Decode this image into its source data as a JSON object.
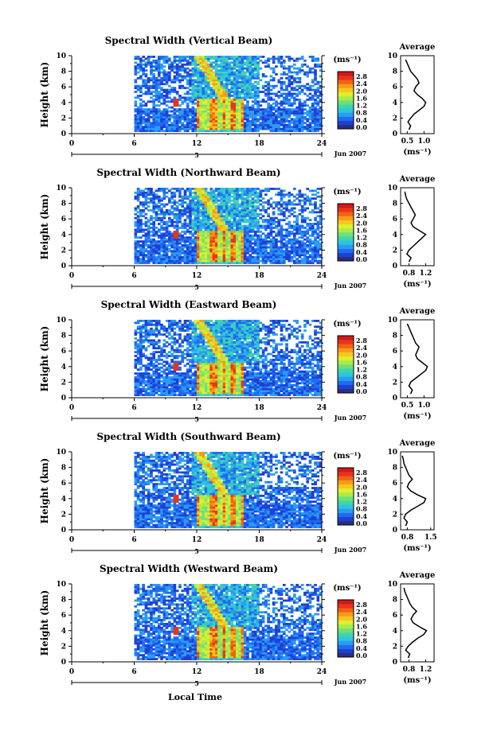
{
  "figure": {
    "date_label": "Jun 2007",
    "bottom_xlabel": "Local Time"
  },
  "colorbar": {
    "unit_label": "(ms⁻¹)",
    "ticks": [
      "2.8",
      "2.4",
      "2.0",
      "1.6",
      "1.2",
      "0.8",
      "0.4",
      "0.0"
    ],
    "colors": [
      "#2b2f7a",
      "#1f3fd6",
      "#1f6cf0",
      "#2a9cf2",
      "#2ec4e0",
      "#3fd6a8",
      "#6ee07a",
      "#a8ec4a",
      "#dfee2e",
      "#f5c81e",
      "#f59a18",
      "#ef6414",
      "#e8341a",
      "#d01818"
    ]
  },
  "chart_data": [
    {
      "type": "heatmap",
      "title": "Spectral Width (Vertical Beam)",
      "ylabel": "Height (km)",
      "xlim": [
        0,
        24
      ],
      "ylim": [
        0,
        10
      ],
      "x_ticks": [
        "0",
        "6",
        "12",
        "18",
        "24"
      ],
      "y_ticks": [
        "0",
        "2",
        "4",
        "6",
        "8",
        "10"
      ],
      "day_label": "5",
      "colorbar_unit": "(ms⁻¹)",
      "average": {
        "title": "Average",
        "xlabel": "(ms⁻¹)",
        "x_ticks": [
          "0.5",
          "1.0"
        ],
        "xlim": [
          0.3,
          1.3
        ],
        "heights": [
          0.5,
          1,
          1.5,
          2,
          2.5,
          3,
          3.5,
          4,
          4.5,
          5,
          5.5,
          6,
          6.5,
          7,
          7.5,
          8,
          8.5,
          9,
          9.5
        ],
        "values": [
          0.55,
          0.6,
          0.52,
          0.6,
          0.7,
          0.85,
          1.0,
          1.05,
          0.95,
          0.8,
          0.7,
          0.75,
          0.85,
          0.8,
          0.7,
          0.6,
          0.55,
          0.5,
          0.45
        ]
      }
    },
    {
      "type": "heatmap",
      "title": "Spectral Width (Northward Beam)",
      "ylabel": "Height (km)",
      "xlim": [
        0,
        24
      ],
      "ylim": [
        0,
        10
      ],
      "x_ticks": [
        "0",
        "6",
        "12",
        "18",
        "24"
      ],
      "y_ticks": [
        "0",
        "2",
        "4",
        "6",
        "8",
        "10"
      ],
      "day_label": "5",
      "colorbar_unit": "(ms⁻¹)",
      "average": {
        "title": "Average",
        "xlabel": "(ms⁻¹)",
        "x_ticks": [
          "0.8",
          "1.2"
        ],
        "xlim": [
          0.6,
          1.4
        ],
        "heights": [
          0.5,
          1,
          1.5,
          2,
          2.5,
          3,
          3.5,
          4,
          4.5,
          5,
          5.5,
          6,
          6.5,
          7,
          7.5,
          8,
          8.5,
          9,
          9.5
        ],
        "values": [
          0.8,
          0.85,
          0.75,
          0.8,
          0.9,
          1.0,
          1.1,
          1.2,
          1.05,
          0.9,
          0.85,
          0.9,
          0.95,
          0.9,
          0.85,
          0.8,
          0.75,
          0.72,
          0.7
        ]
      }
    },
    {
      "type": "heatmap",
      "title": "Spectral Width (Eastward Beam)",
      "ylabel": "Height (km)",
      "xlim": [
        0,
        24
      ],
      "ylim": [
        0,
        10
      ],
      "x_ticks": [
        "0",
        "6",
        "12",
        "18",
        "24"
      ],
      "y_ticks": [
        "0",
        "2",
        "4",
        "6",
        "8",
        "10"
      ],
      "day_label": "5",
      "colorbar_unit": "(ms⁻¹)",
      "average": {
        "title": "Average",
        "xlabel": "(ms⁻¹)",
        "x_ticks": [
          "0.5",
          "1.0"
        ],
        "xlim": [
          0.3,
          1.3
        ],
        "heights": [
          0.5,
          1,
          1.5,
          2,
          2.5,
          3,
          3.5,
          4,
          4.5,
          5,
          5.5,
          6,
          6.5,
          7,
          7.5,
          8,
          8.5,
          9,
          9.5
        ],
        "values": [
          0.6,
          0.65,
          0.55,
          0.6,
          0.75,
          0.9,
          1.05,
          1.1,
          0.95,
          0.8,
          0.75,
          0.8,
          0.85,
          0.75,
          0.7,
          0.65,
          0.6,
          0.55,
          0.5
        ]
      }
    },
    {
      "type": "heatmap",
      "title": "Spectral Width (Southward Beam)",
      "ylabel": "Height (km)",
      "xlim": [
        0,
        24
      ],
      "ylim": [
        0,
        10
      ],
      "x_ticks": [
        "0",
        "6",
        "12",
        "18",
        "24"
      ],
      "y_ticks": [
        "0",
        "2",
        "4",
        "6",
        "8",
        "10"
      ],
      "day_label": "5",
      "colorbar_unit": "(ms⁻¹)",
      "average": {
        "title": "Average",
        "xlabel": "(ms⁻¹)",
        "x_ticks": [
          "0.8",
          "1.5"
        ],
        "xlim": [
          0.6,
          1.6
        ],
        "heights": [
          0.5,
          1,
          1.5,
          2,
          2.5,
          3,
          3.5,
          4,
          4.5,
          5,
          5.5,
          6,
          6.5,
          7,
          7.5,
          8,
          8.5,
          9,
          9.5
        ],
        "values": [
          0.75,
          0.8,
          0.7,
          0.75,
          0.9,
          1.1,
          1.3,
          1.35,
          1.1,
          0.9,
          0.8,
          0.85,
          0.95,
          0.85,
          0.8,
          0.75,
          0.7,
          0.68,
          0.65
        ]
      }
    },
    {
      "type": "heatmap",
      "title": "Spectral Width (Westward Beam)",
      "ylabel": "Height (km)",
      "xlabel": "Local Time",
      "xlim": [
        0,
        24
      ],
      "ylim": [
        0,
        10
      ],
      "x_ticks": [
        "0",
        "6",
        "12",
        "18",
        "24"
      ],
      "y_ticks": [
        "0",
        "2",
        "4",
        "6",
        "8",
        "10"
      ],
      "day_label": "5",
      "colorbar_unit": "(ms⁻¹)",
      "average": {
        "title": "Average",
        "xlabel": "(ms⁻¹)",
        "x_ticks": [
          "0.8",
          "1.2"
        ],
        "xlim": [
          0.6,
          1.4
        ],
        "heights": [
          0.5,
          1,
          1.5,
          2,
          2.5,
          3,
          3.5,
          4,
          4.5,
          5,
          5.5,
          6,
          6.5,
          7,
          7.5,
          8,
          8.5,
          9,
          9.5
        ],
        "values": [
          0.78,
          0.82,
          0.72,
          0.78,
          0.88,
          1.0,
          1.15,
          1.22,
          1.05,
          0.9,
          0.85,
          0.9,
          0.98,
          0.88,
          0.82,
          0.78,
          0.74,
          0.7,
          0.68
        ]
      }
    }
  ]
}
